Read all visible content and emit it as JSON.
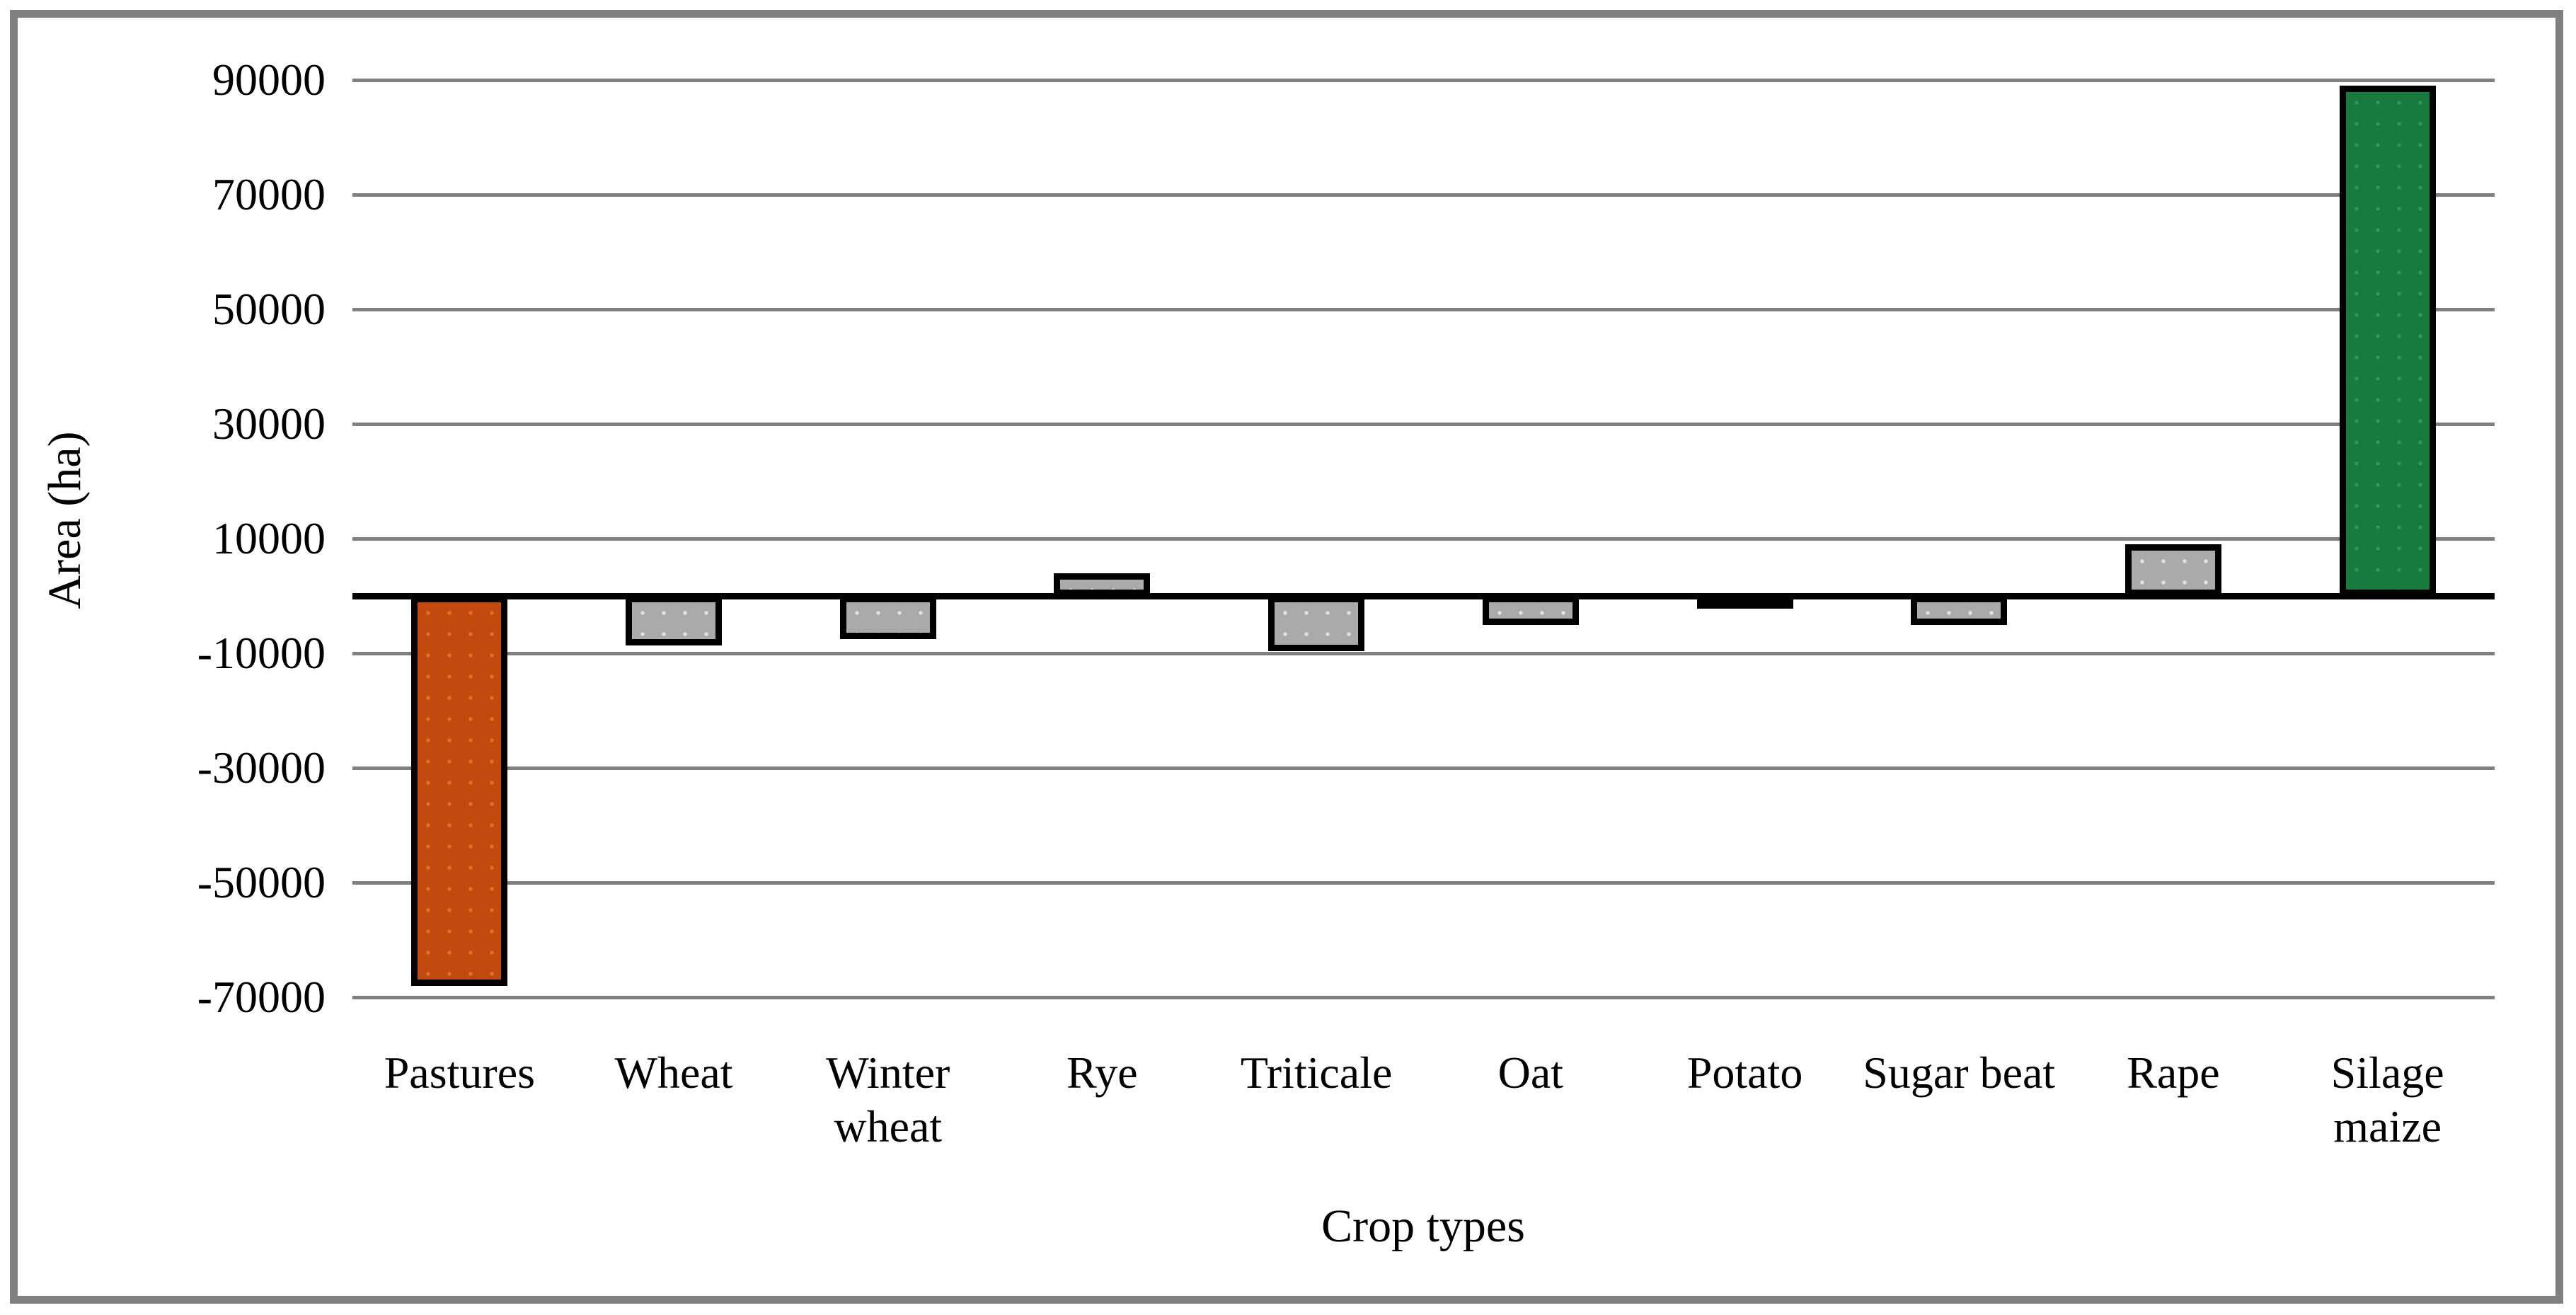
{
  "chart_data": {
    "type": "bar",
    "title": "",
    "xlabel": "Crop types",
    "ylabel": "Area (ha)",
    "categories": [
      "Pastures",
      "Wheat",
      "Winter wheat",
      "Rye",
      "Triticale",
      "Oat",
      "Potato",
      "Sugar beat",
      "Rape",
      "Silage maize"
    ],
    "values": [
      -68000,
      -8700,
      -7500,
      4000,
      -9600,
      -5000,
      -800,
      -5000,
      9000,
      89000
    ],
    "bar_colors": [
      "#C24A0E",
      "#AAAAAA",
      "#AAAAAA",
      "#AAAAAA",
      "#AAAAAA",
      "#AAAAAA",
      "#AAAAAA",
      "#AAAAAA",
      "#AAAAAA",
      "#187A3C"
    ],
    "bar_dot_colors": [
      "rgba(255,165,60,0.45)",
      "rgba(255,255,255,0.65)",
      "rgba(255,255,255,0.65)",
      "rgba(255,255,255,0.65)",
      "rgba(255,255,255,0.65)",
      "rgba(255,255,255,0.65)",
      "rgba(255,255,255,0.65)",
      "rgba(255,255,255,0.65)",
      "rgba(255,255,255,0.65)",
      "rgba(110,200,130,0.35)"
    ],
    "yticks": [
      90000,
      70000,
      50000,
      30000,
      10000,
      -10000,
      -30000,
      -50000,
      -70000
    ],
    "ytick_labels": [
      "90000",
      "70000",
      "50000",
      "30000",
      "10000",
      "-10000",
      "-30000",
      "-50000",
      "-70000"
    ],
    "ylim": [
      -70000,
      90000
    ],
    "grid": true,
    "legend_position": "none",
    "colors": {
      "gridline": "#808080",
      "zero_axis": "#000000",
      "bar_border": "#000000",
      "frame_border": "#808080",
      "background": "#FFFFFF"
    }
  }
}
